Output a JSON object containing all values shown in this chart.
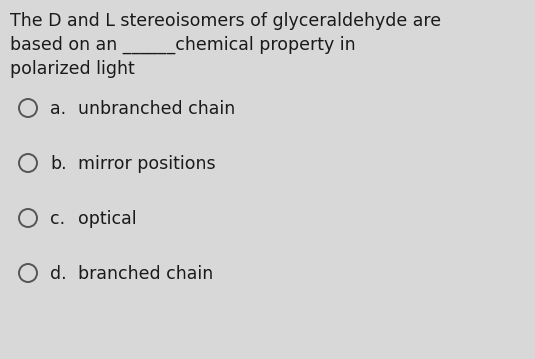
{
  "background_color": "#d8d8d8",
  "question_lines": [
    "The D and L stereoisomers of glyceraldehyde are",
    "based on an ______chemical property in",
    "polarized light"
  ],
  "options": [
    {
      "label": "a.",
      "text": "unbranched chain"
    },
    {
      "label": "b.",
      "text": "mirror positions"
    },
    {
      "label": "c.",
      "text": "optical"
    },
    {
      "label": "d.",
      "text": "branched chain"
    }
  ],
  "question_fontsize": 12.5,
  "option_fontsize": 12.5,
  "text_color": "#1a1a1a",
  "circle_color": "#555555",
  "fig_width": 5.35,
  "fig_height": 3.59,
  "dpi": 100
}
